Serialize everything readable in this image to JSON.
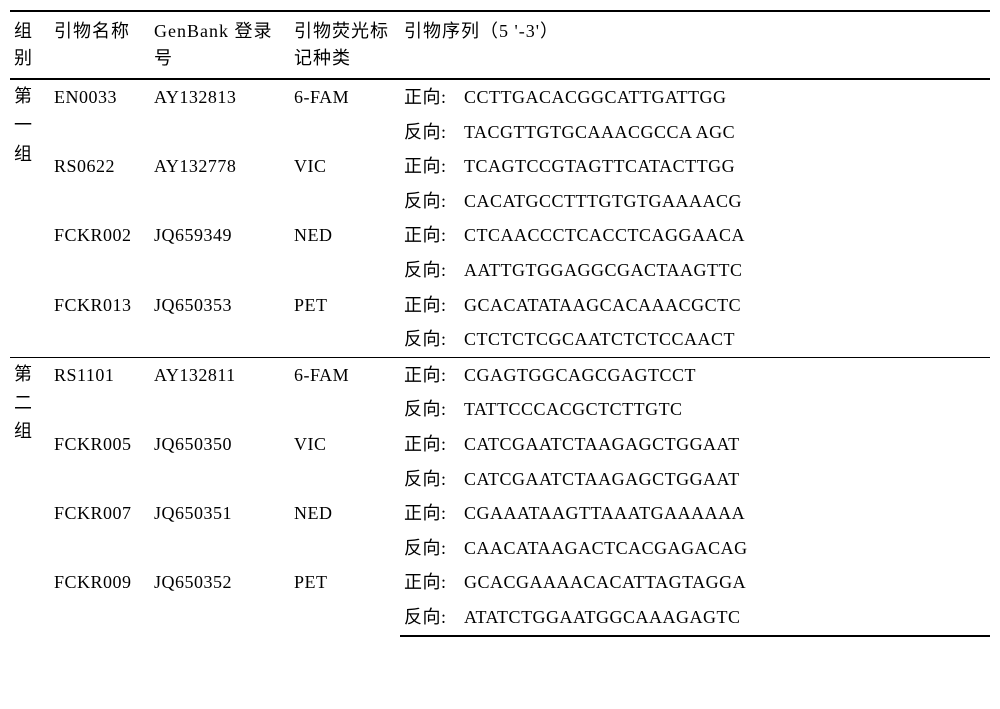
{
  "headers": {
    "group": "组别",
    "primer": "引物名称",
    "genbank": "GenBank 登录号",
    "label": "引物荧光标记种类",
    "sequence": "引物序列（5 '-3'）"
  },
  "directions": {
    "forward": "正向:",
    "reverse": "反向:"
  },
  "groups": [
    {
      "name": "第一组",
      "rows": [
        {
          "primer": "EN0033",
          "genbank": "AY132813",
          "label": "6-FAM",
          "forward": "CCTTGACACGGCATTGATTGG",
          "reverse": "TACGTTGTGCAAACGCCA AGC"
        },
        {
          "primer": "RS0622",
          "genbank": "AY132778",
          "label": "VIC",
          "forward": "TCAGTCCGTAGTTCATACTTGG",
          "reverse": "CACATGCCTTTGTGTGAAAACG"
        },
        {
          "primer": "FCKR002",
          "genbank": "JQ659349",
          "label": "NED",
          "forward": "CTCAACCCTCACCTCAGGAACA",
          "reverse": "AATTGTGGAGGCGACTAAGTTC"
        },
        {
          "primer": "FCKR013",
          "genbank": "JQ650353",
          "label": "PET",
          "forward": "GCACATATAAGCACAAACGCTC",
          "reverse": "CTCTCTCGCAATCTCTCCAACT"
        }
      ]
    },
    {
      "name": "第二组",
      "rows": [
        {
          "primer": "RS1101",
          "genbank": "AY132811",
          "label": "6-FAM",
          "forward": "CGAGTGGCAGCGAGTCCT",
          "reverse": "TATTCCCACGCTCTTGTC"
        },
        {
          "primer": "FCKR005",
          "genbank": "JQ650350",
          "label": "VIC",
          "forward": "CATCGAATCTAAGAGCTGGAAT",
          "reverse": "CATCGAATCTAAGAGCTGGAAT"
        },
        {
          "primer": "FCKR007",
          "genbank": "JQ650351",
          "label": "NED",
          "forward": "CGAAATAAGTTAAATGAAAAAA",
          "reverse": "CAACATAAGACTCACGAGACAG"
        },
        {
          "primer": "FCKR009",
          "genbank": "JQ650352",
          "label": "PET",
          "forward": "GCACGAAAACACATTAGTAGGA",
          "reverse": "ATATCTGGAATGGCAAAGAGTC"
        }
      ]
    }
  ],
  "styling": {
    "font_family": "SimSun",
    "font_size_pt": 18,
    "line_height": 1.7,
    "background_color": "#ffffff",
    "text_color": "#000000",
    "border_top_thick": "2px solid #000",
    "border_mid": "1px solid #000",
    "col_widths": {
      "group": 40,
      "primer": 100,
      "genbank": 140,
      "label": 110,
      "seq_dir": 60
    }
  }
}
